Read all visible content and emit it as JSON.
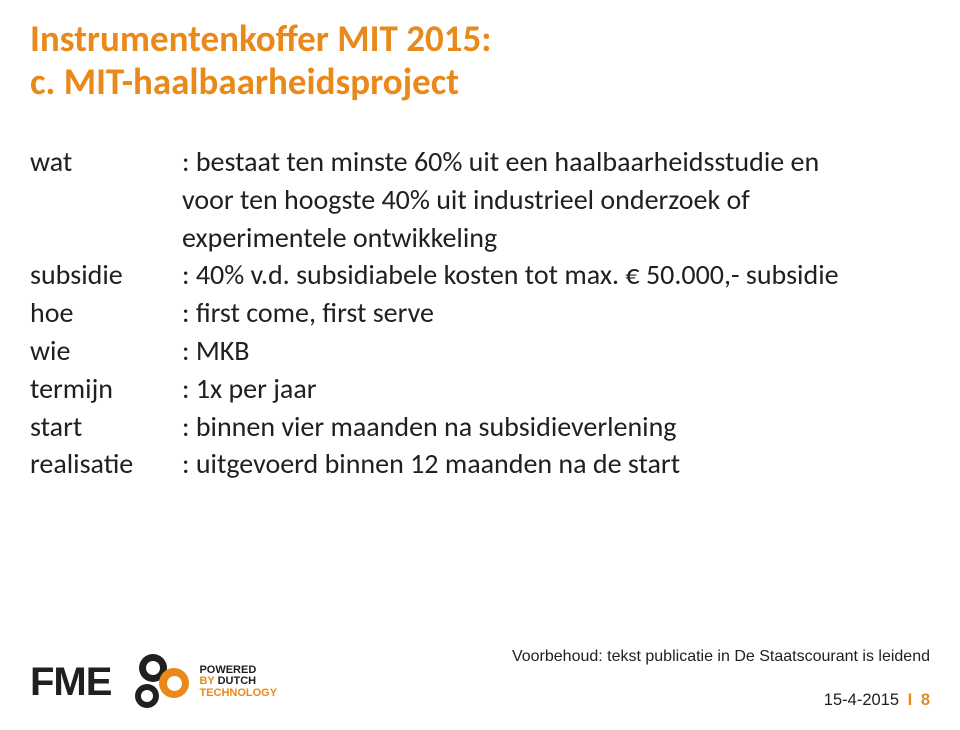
{
  "title_line1": "Instrumentenkoffer MIT 2015:",
  "title_line2": "c. MIT-haalbaarheidsproject",
  "rows": [
    {
      "label": "wat",
      "value": ": bestaat ten minste 60% uit een haalbaarheidsstudie en"
    },
    {
      "label": "",
      "value": "  voor ten hoogste 40% uit industrieel onderzoek of"
    },
    {
      "label": "",
      "value": "  experimentele ontwikkeling"
    },
    {
      "label": "subsidie",
      "value": ": 40% v.d. subsidiabele kosten tot max. € 50.000,- subsidie"
    },
    {
      "label": "hoe",
      "value": ": first come, first serve"
    },
    {
      "label": "wie",
      "value": ": MKB"
    },
    {
      "label": "termijn",
      "value": ": 1x per jaar"
    },
    {
      "label": "start",
      "value": ": binnen vier maanden na subsidieverlening"
    },
    {
      "label": "realisatie",
      "value": ": uitgevoerd binnen 12 maanden na de start"
    }
  ],
  "footnote": "Voorbehoud: tekst publicatie in De Staatscourant is leidend",
  "footer_date": "15-4-2015",
  "footer_page": "8",
  "logo_fme": "FME",
  "logo_powered_l1": "POWERED",
  "logo_powered_l2": "BY DUTCH",
  "logo_powered_l3": "TECHNOLOGY",
  "colors": {
    "accent": "#e8891a",
    "text": "#202020",
    "bg": "#ffffff"
  }
}
